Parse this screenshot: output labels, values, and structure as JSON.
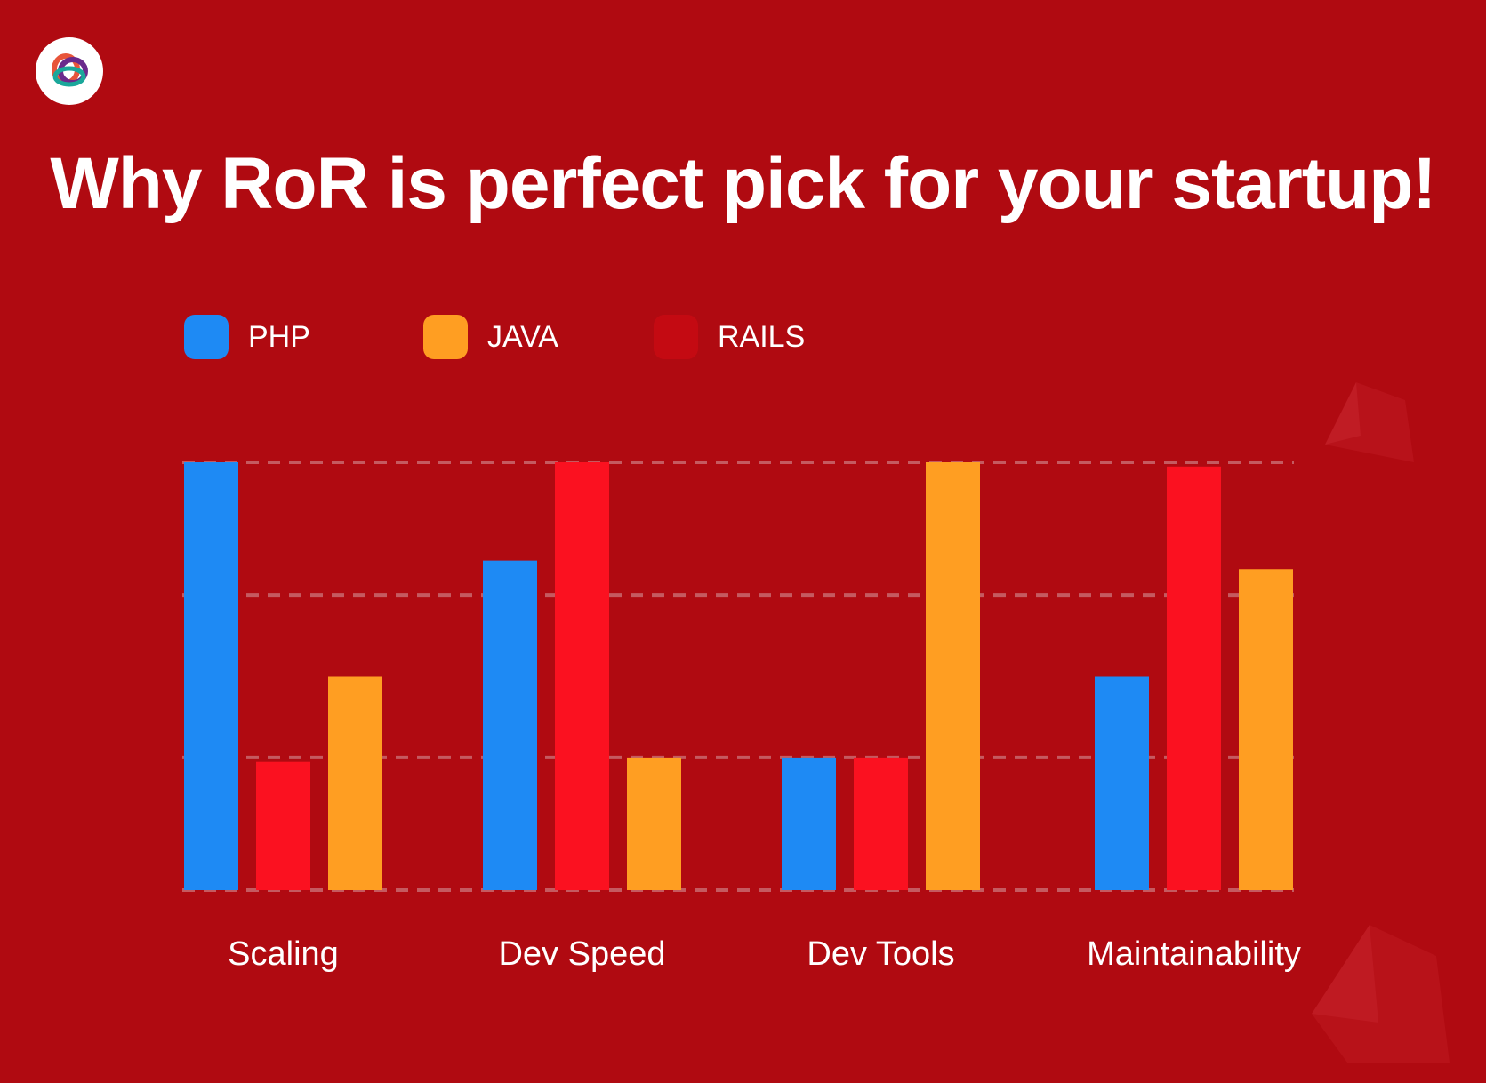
{
  "header": {
    "title": "Why RoR is perfect pick for your startup!",
    "logo_icon": "brand-logo-icon"
  },
  "legend": [
    {
      "label": "PHP",
      "color": "#1e8af4"
    },
    {
      "label": "JAVA",
      "color": "#ff9e22"
    },
    {
      "label": "RAILS",
      "color": "#c40a12"
    }
  ],
  "colors": {
    "background": "#b00a11",
    "php": "#1e8af4",
    "java": "#ff9e22",
    "rails": "#fb1120",
    "gridline": "#c55a60"
  },
  "chart_data": {
    "type": "bar",
    "categories": [
      "Scaling",
      "Dev Speed",
      "Dev Tools",
      "Maintainability"
    ],
    "series": [
      {
        "name": "PHP",
        "values": [
          100,
          77,
          31,
          50
        ]
      },
      {
        "name": "RAILS",
        "values": [
          30,
          100,
          31,
          99
        ]
      },
      {
        "name": "JAVA",
        "values": [
          50,
          31,
          100,
          75
        ]
      }
    ],
    "title": "Why RoR is perfect pick for your startup!",
    "xlabel": "",
    "ylabel": "",
    "ylim": [
      0,
      100
    ],
    "grid": true,
    "legend_position": "top-left"
  }
}
